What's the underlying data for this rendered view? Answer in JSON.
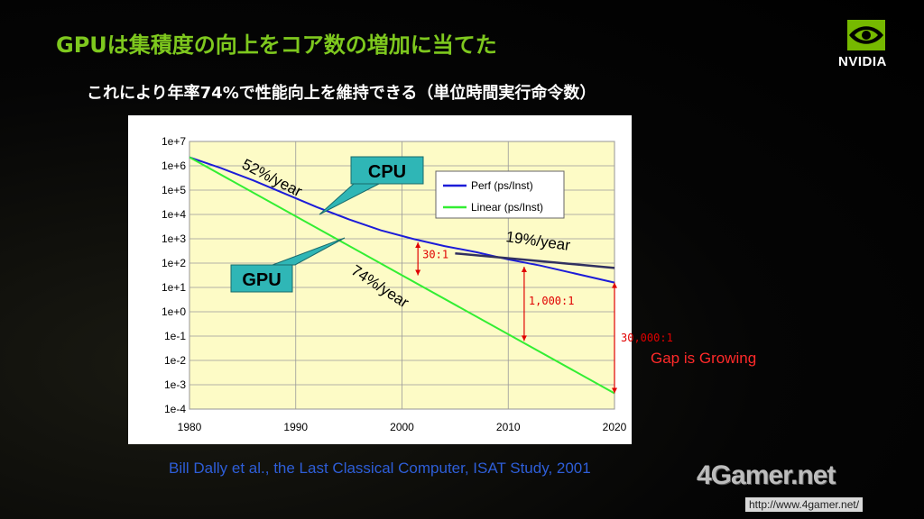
{
  "title": "GPUは集積度の向上をコア数の増加に当てた",
  "subtitle": "これにより年率74%で性能向上を維持できる（単位時間実行命令数）",
  "logo": {
    "icon": "nvidia-eye-icon",
    "text": "NVIDIA",
    "color": "#76b900"
  },
  "citation": "Bill Dally et al., the Last Classical Computer, ISAT Study, 2001",
  "gap_note": "Gap is Growing",
  "watermark": {
    "brand": "4Gamer.net",
    "url": "http://www.4gamer.net/"
  },
  "chart_data": {
    "type": "line",
    "x_ticks": [
      "1980",
      "1990",
      "2000",
      "2010",
      "2020"
    ],
    "y_ticks": [
      "1e+7",
      "1e+6",
      "1e+5",
      "1e+4",
      "1e+3",
      "1e+2",
      "1e+1",
      "1e+0",
      "1e-1",
      "1e-2",
      "1e-3",
      "1e-4"
    ],
    "xlim": [
      1980,
      2020
    ],
    "ylim_log10": [
      -4,
      7
    ],
    "y_scale": "log",
    "grid": true,
    "background_color": "#fdfbc6",
    "legend_placement": "top-right",
    "series": [
      {
        "name": "Perf (ps/Inst)",
        "color": "#1c1cd8",
        "x": [
          1980,
          1983,
          1986,
          1989,
          1992,
          1995,
          1998,
          2001,
          2004,
          2007,
          2010,
          2013,
          2016,
          2020
        ],
        "log10_y": [
          6.35,
          5.9,
          5.4,
          4.85,
          4.3,
          3.8,
          3.35,
          3.0,
          2.7,
          2.45,
          2.15,
          1.9,
          1.6,
          1.2
        ]
      },
      {
        "name": "Linear (ps/Inst)",
        "color": "#33ee33",
        "x": [
          1980,
          2020
        ],
        "log10_y": [
          6.35,
          -3.35
        ]
      }
    ],
    "trend_19": {
      "color": "#303060",
      "x": [
        2005,
        2020
      ],
      "log10_y": [
        2.4,
        1.8
      ]
    },
    "labels": {
      "rate52": "52%/year",
      "rate74": "74%/year",
      "rate19": "19%/year",
      "cpu": "CPU",
      "gpu": "GPU"
    },
    "ratios": [
      {
        "label": "30:1",
        "x": 2001.5,
        "from": 2.85,
        "to": 1.5
      },
      {
        "label": "1,000:1",
        "x": 2011.5,
        "from": 1.85,
        "to": -1.2
      },
      {
        "label": "30,000:1",
        "x": 2020,
        "from": 1.2,
        "to": -3.35
      }
    ]
  }
}
